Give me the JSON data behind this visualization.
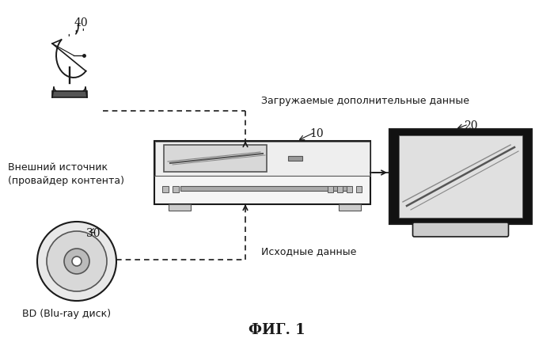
{
  "bg_color": "#ffffff",
  "fig_label": "ФИГ. 1",
  "fig_label_fontsize": 13,
  "label_40": "40",
  "label_10": "10",
  "label_20": "20",
  "label_30": "30",
  "text_external": "Внешний источник\n(провайдер контента)",
  "text_download": "Загружаемые дополнительные данные",
  "text_source": "Исходные данные",
  "text_bd": "BD (Blu-ray диск)",
  "black": "#1a1a1a",
  "dgray": "#555555",
  "mgray": "#888888",
  "lgray": "#cccccc"
}
